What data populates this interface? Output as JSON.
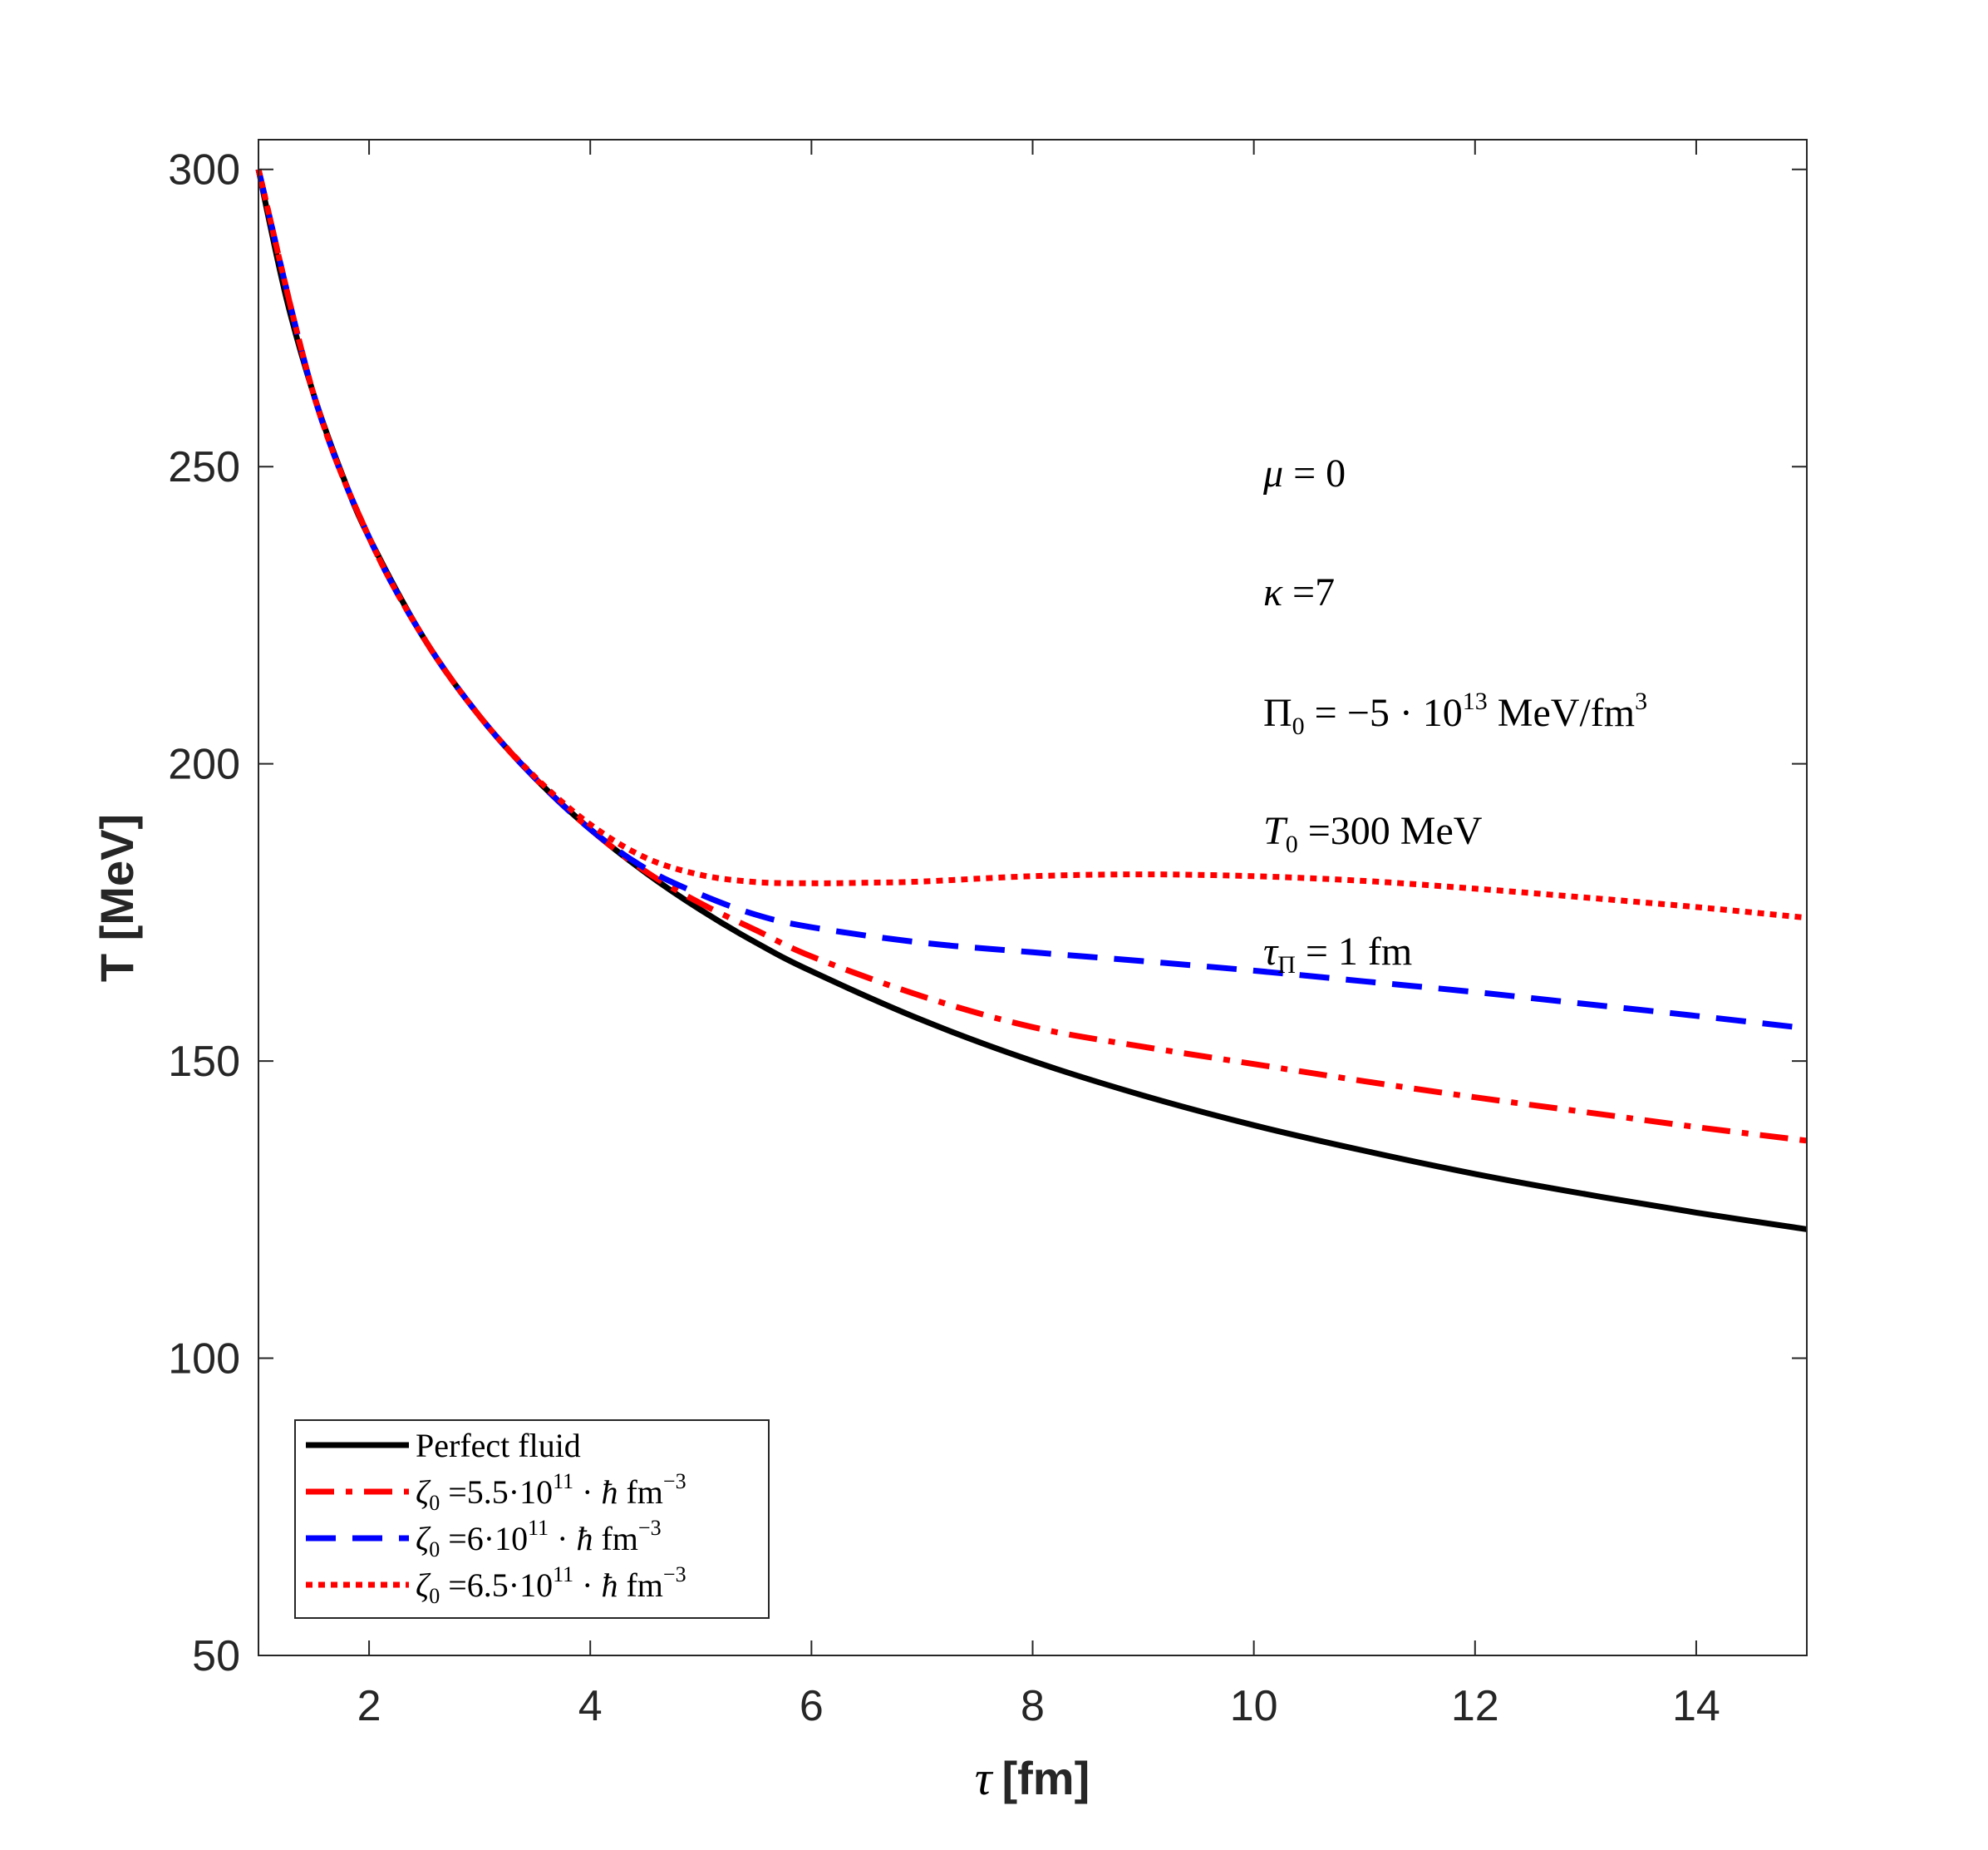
{
  "chart_data": {
    "type": "line",
    "title": "",
    "xlabel_symbol": "τ",
    "xlabel_unit": "[fm]",
    "ylabel": "T [MeV]",
    "xlim": [
      1,
      15
    ],
    "ylim": [
      50,
      305
    ],
    "xticks": [
      2,
      4,
      6,
      8,
      10,
      12,
      14
    ],
    "yticks": [
      50,
      100,
      150,
      200,
      250,
      300
    ],
    "grid": false,
    "legend_position": "bottom-left",
    "series": [
      {
        "name": "Perfect fluid",
        "color": "#000000",
        "style": "solid",
        "x": [
          1,
          1.25,
          1.5,
          1.75,
          2,
          2.5,
          3,
          3.5,
          4,
          4.5,
          5,
          5.5,
          6,
          7,
          8,
          9,
          10,
          11,
          12,
          13,
          14,
          15
        ],
        "y": [
          300,
          278.5,
          262.1,
          249.0,
          238.1,
          221.0,
          208.0,
          197.6,
          189.0,
          181.7,
          175.4,
          169.9,
          165.1,
          156.9,
          150.0,
          144.2,
          139.2,
          134.9,
          131.0,
          127.6,
          124.5,
          121.7
        ]
      },
      {
        "name": "ζ0 =5.5·10^11 · ħ fm^-3",
        "color": "#ff0000",
        "style": "dashdot",
        "x": [
          1,
          1.5,
          2,
          2.5,
          3,
          3.5,
          4,
          4.5,
          5,
          5.5,
          6,
          7,
          8,
          9,
          10,
          11,
          12,
          13,
          14,
          15
        ],
        "y": [
          300,
          262.1,
          238.1,
          221.0,
          208.0,
          197.6,
          189.0,
          181.9,
          176.5,
          172.0,
          167.6,
          160.9,
          155.7,
          152.4,
          149.5,
          146.6,
          143.9,
          141.4,
          138.9,
          136.6
        ]
      },
      {
        "name": "ζ0 =6·10^11 · ħ fm^-3",
        "color": "#0000ff",
        "style": "dashed",
        "x": [
          1,
          1.5,
          2,
          2.5,
          3,
          3.5,
          4,
          4.5,
          5,
          5.5,
          6,
          7,
          8,
          9,
          10,
          11,
          12,
          13,
          14,
          15
        ],
        "y": [
          300,
          262.1,
          238.1,
          221.0,
          208.0,
          197.6,
          189.0,
          182.4,
          178.0,
          174.6,
          172.5,
          169.9,
          168.3,
          166.8,
          165.2,
          163.4,
          161.6,
          159.6,
          157.6,
          155.5
        ]
      },
      {
        "name": "ζ0 =6.5·10^11 · ħ fm^-3",
        "color": "#ff0000",
        "style": "dotted",
        "x": [
          1,
          1.5,
          2,
          2.5,
          3,
          3.5,
          4,
          4.5,
          5,
          5.5,
          6,
          6.5,
          7,
          8,
          9,
          10,
          11,
          12,
          13,
          14,
          15
        ],
        "y": [
          300,
          262.1,
          238.1,
          221.0,
          208.0,
          197.8,
          189.8,
          184.2,
          181.3,
          180.1,
          179.9,
          180.0,
          180.2,
          181.1,
          181.4,
          181.1,
          180.3,
          179.0,
          177.5,
          175.9,
          174.1
        ]
      }
    ],
    "annotations": [
      {
        "id": "mu",
        "symbol": "μ",
        "sub": "",
        "eq": " = 0",
        "unit": ""
      },
      {
        "id": "kappa",
        "symbol": "κ",
        "sub": "",
        "eq": " =7",
        "unit": ""
      },
      {
        "id": "pi0",
        "symbol": "Π",
        "sub": "0",
        "eq": " = −5 · 10",
        "exp": "13",
        "unit": " MeV/fm",
        "unit_exp": "3"
      },
      {
        "id": "t0",
        "symbol": "T",
        "sub": "0",
        "eq": " =300 MeV",
        "unit": ""
      },
      {
        "id": "taupi",
        "symbol": "τ",
        "sub": "Π",
        "eq": " = 1 fm",
        "unit": ""
      }
    ]
  }
}
